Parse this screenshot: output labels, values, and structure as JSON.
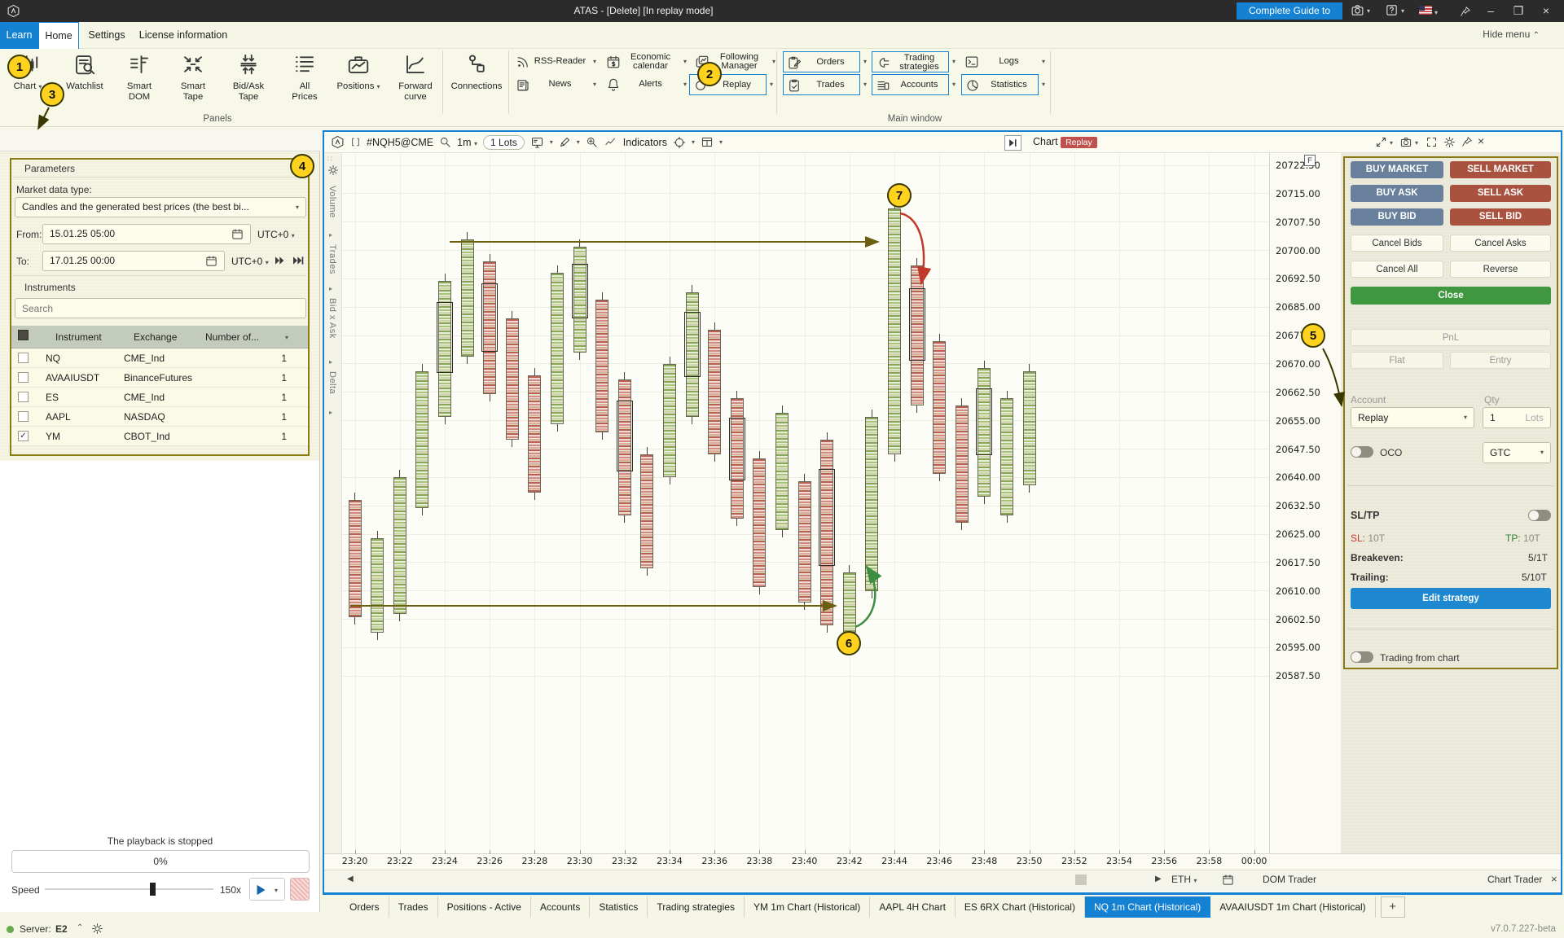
{
  "colors": {
    "accent": "#1581d2",
    "badge_replay": "#c0504d",
    "buy": "#68809c",
    "sell": "#a8523f",
    "close": "#3f9840",
    "annotation": "#8a7a14",
    "circle": "#ffd21e",
    "bull": "#86a854",
    "bear": "#bb5f53",
    "sl_red": "#c0392b",
    "tp_green": "#2e7d32"
  },
  "titlebar": {
    "title": "ATAS - [Delete] [In replay mode]",
    "guide": "Complete Guide to ATAS"
  },
  "menu": {
    "tabs": [
      "Learn",
      "Home",
      "Settings",
      "License information"
    ],
    "active": "Home",
    "hide_menu": "Hide menu"
  },
  "ribbon": {
    "large": [
      {
        "label": "Chart",
        "icon": "chart",
        "dd": true
      },
      {
        "label": "Watchlist",
        "icon": "watchlist",
        "dd": false
      },
      {
        "label": "Smart\nDOM",
        "icon": "smartdom",
        "dd": false
      },
      {
        "label": "Smart\nTape",
        "icon": "smarttape",
        "dd": false
      },
      {
        "label": "Bid/Ask\nTape",
        "icon": "bidask",
        "dd": false
      },
      {
        "label": "All\nPrices",
        "icon": "allprices",
        "dd": false
      },
      {
        "label": "Positions",
        "icon": "positions",
        "dd": true
      },
      {
        "label": "Forward\ncurve",
        "icon": "forward",
        "dd": false
      },
      {
        "label": "Connections",
        "icon": "connections",
        "dd": false
      }
    ],
    "row1": [
      {
        "label": "RSS-Reader",
        "icon": "rss",
        "box": false
      },
      {
        "label": "Economic\ncalendar",
        "icon": "ecocal",
        "box": false
      },
      {
        "label": "Following\nManager",
        "icon": "followmgr",
        "box": false
      },
      {
        "label": "Orders",
        "icon": "orders",
        "box": true
      },
      {
        "label": "Trading\nstrategies",
        "icon": "strategies",
        "box": true
      },
      {
        "label": "Logs",
        "icon": "logs",
        "box": false
      }
    ],
    "row2": [
      {
        "label": "News",
        "icon": "news",
        "box": false
      },
      {
        "label": "Alerts",
        "icon": "alerts",
        "box": false
      },
      {
        "label": "Replay",
        "icon": "replayic",
        "box": true
      },
      {
        "label": "Trades",
        "icon": "trades",
        "box": true
      },
      {
        "label": "Accounts",
        "icon": "accounts",
        "box": true
      },
      {
        "label": "Statistics",
        "icon": "stats",
        "box": true
      }
    ],
    "group_labels": [
      "Panels",
      "Main window"
    ]
  },
  "replay": {
    "title": "Replay",
    "parameters_title": "Parameters",
    "market_label": "Market data type:",
    "market_value": "Candles and the generated best prices (the best bi...",
    "from_label": "From:",
    "from_value": "15.01.25 05:00",
    "from_tz": "UTC+0",
    "to_label": "To:",
    "to_value": "17.01.25 00:00",
    "to_tz": "UTC+0",
    "instruments_title": "Instruments",
    "search_placeholder": "Search",
    "table": {
      "headers": [
        "Instrument",
        "Exchange",
        "Number of..."
      ],
      "rows": [
        {
          "instrument": "NQ",
          "exchange": "CME_Ind",
          "count": "1",
          "checked": false
        },
        {
          "instrument": "AVAAIUSDT",
          "exchange": "BinanceFutures",
          "count": "1",
          "checked": false
        },
        {
          "instrument": "ES",
          "exchange": "CME_Ind",
          "count": "1",
          "checked": false
        },
        {
          "instrument": "AAPL",
          "exchange": "NASDAQ",
          "count": "1",
          "checked": false
        },
        {
          "instrument": "YM",
          "exchange": "CBOT_Ind",
          "count": "1",
          "checked": true
        }
      ]
    },
    "playback_status": "The playback is stopped",
    "progress": "0%",
    "speed_label": "Speed",
    "speed_value": "150x"
  },
  "chart": {
    "symbol": "#NQH5@CME",
    "timeframe": "1m",
    "lots": "1 Lots",
    "indicators_label": "Indicators",
    "title": "Chart",
    "badge": "Replay",
    "f_label": "F",
    "side_tabs": [
      "Volume",
      "Trades",
      "Bid x Ask",
      "Delta"
    ],
    "eth_label": "ETH",
    "dom_trader_label": "DOM Trader",
    "chart_trader_label": "Chart Trader",
    "price_axis": {
      "start": 20722.5,
      "step": 7.5,
      "count": 19
    },
    "time_labels": [
      "23:20",
      "23:22",
      "23:24",
      "23:26",
      "23:28",
      "23:30",
      "23:32",
      "23:34",
      "23:36",
      "23:38",
      "23:40",
      "23:42",
      "23:44",
      "23:46",
      "23:48",
      "23:50",
      "23:52",
      "23:54",
      "23:56",
      "23:58",
      "00:00"
    ],
    "candles": [
      [
        20634,
        20603,
        0,
        0
      ],
      [
        20624,
        20599,
        1,
        0
      ],
      [
        20640,
        20604,
        1,
        0
      ],
      [
        20668,
        20632,
        1,
        0
      ],
      [
        20692,
        20656,
        1,
        1
      ],
      [
        20703,
        20672,
        1,
        0
      ],
      [
        20697,
        20662,
        0,
        1
      ],
      [
        20682,
        20650,
        0,
        0
      ],
      [
        20667,
        20636,
        0,
        0
      ],
      [
        20694,
        20654,
        1,
        0
      ],
      [
        20701,
        20673,
        1,
        1
      ],
      [
        20687,
        20652,
        0,
        0
      ],
      [
        20666,
        20630,
        0,
        1
      ],
      [
        20646,
        20616,
        0,
        0
      ],
      [
        20670,
        20640,
        1,
        0
      ],
      [
        20689,
        20656,
        1,
        1
      ],
      [
        20679,
        20646,
        0,
        0
      ],
      [
        20661,
        20629,
        0,
        1
      ],
      [
        20645,
        20611,
        0,
        0
      ],
      [
        20657,
        20626,
        1,
        0
      ],
      [
        20639,
        20607,
        0,
        0
      ],
      [
        20650,
        20601,
        0,
        1
      ],
      [
        20615,
        20599,
        1,
        0
      ],
      [
        20656,
        20610,
        1,
        0
      ],
      [
        20711,
        20646,
        1,
        0
      ],
      [
        20696,
        20659,
        0,
        1
      ],
      [
        20676,
        20641,
        0,
        0
      ],
      [
        20659,
        20628,
        0,
        0
      ],
      [
        20669,
        20635,
        1,
        1
      ],
      [
        20661,
        20630,
        1,
        0
      ],
      [
        20668,
        20638,
        1,
        0
      ]
    ]
  },
  "dom": {
    "buy_market": "BUY MARKET",
    "sell_market": "SELL MARKET",
    "buy_ask": "BUY ASK",
    "sell_ask": "SELL ASK",
    "buy_bid": "BUY BID",
    "sell_bid": "SELL BID",
    "cancel_bids": "Cancel Bids",
    "cancel_asks": "Cancel Asks",
    "cancel_all": "Cancel All",
    "reverse": "Reverse",
    "close": "Close",
    "pnl": "PnL",
    "flat": "Flat",
    "entry": "Entry",
    "account_label": "Account",
    "account_value": "Replay",
    "qty_label": "Qty",
    "qty_value": "1",
    "qty_unit": "Lots",
    "oco_label": "OCO",
    "tif_value": "GTC",
    "sltp_label": "SL/TP",
    "sl_label": "SL:",
    "sl_value": "10T",
    "tp_label": "TP:",
    "tp_value": "10T",
    "breakeven_label": "Breakeven:",
    "breakeven_value": "5/1T",
    "trailing_label": "Trailing:",
    "trailing_value": "5/10T",
    "edit_strategy": "Edit strategy",
    "trading_from_chart": "Trading from chart"
  },
  "tabs_bottom": {
    "items": [
      "Orders",
      "Trades",
      "Positions - Active",
      "Accounts",
      "Statistics",
      "Trading strategies",
      "YM 1m Chart (Historical)",
      "AAPL 4H Chart",
      "ES 6RX Chart (Historical)",
      "NQ 1m Chart (Historical)",
      "AVAAIUSDT 1m Chart (Historical)"
    ],
    "active_index": 9,
    "plus": "+"
  },
  "statusbar": {
    "server_label": "Server:",
    "server_value": "E2",
    "version": "v7.0.7.227-beta"
  },
  "annotations": {
    "labels": [
      "1",
      "2",
      "3",
      "4",
      "5",
      "6",
      "7"
    ]
  }
}
